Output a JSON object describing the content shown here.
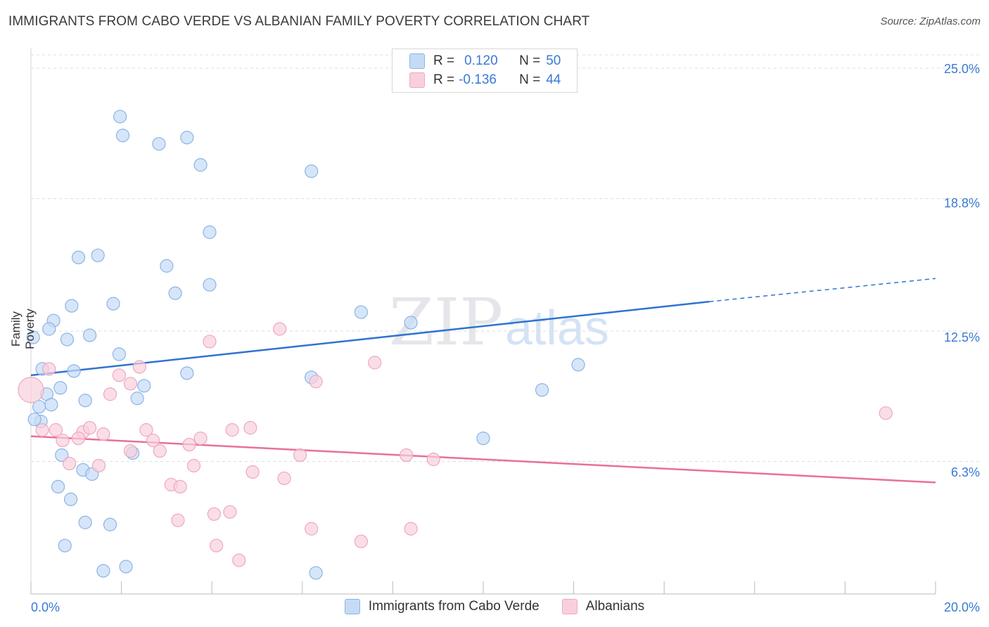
{
  "title": "IMMIGRANTS FROM CABO VERDE VS ALBANIAN FAMILY POVERTY CORRELATION CHART",
  "source": "Source: ZipAtlas.com",
  "watermark": {
    "zip": "ZIP",
    "atlas": "atlas"
  },
  "legend": {
    "r_label": "R =",
    "n_label": "N =",
    "series1": {
      "r": "0.120",
      "n": "50"
    },
    "series2": {
      "r": "-0.136",
      "n": "44"
    }
  },
  "chart_data": {
    "type": "scatter",
    "xlabel": "",
    "ylabel": "Family Poverty",
    "xlim": [
      0,
      20
    ],
    "ylim": [
      0,
      25
    ],
    "x_tick_labels": [
      "0.0%",
      "20.0%"
    ],
    "y_ticks": [
      6.3,
      12.5,
      18.8,
      25.0
    ],
    "y_tick_labels": [
      "6.3%",
      "12.5%",
      "18.8%",
      "25.0%"
    ],
    "grid": true,
    "series": [
      {
        "name": "Immigrants from Cabo Verde",
        "color": "#8ab4e8",
        "fill": "#c5dbf5",
        "trend_color": "#2f74d0",
        "trend": {
          "x0": 0.0,
          "y0": 10.4,
          "x1": 15.0,
          "y1": 13.9,
          "x_ext": 20.0,
          "y_ext": 15.0
        },
        "points": [
          [
            1.97,
            22.7
          ],
          [
            2.03,
            21.8
          ],
          [
            2.83,
            21.4
          ],
          [
            3.45,
            21.7
          ],
          [
            3.75,
            20.4
          ],
          [
            6.2,
            20.1
          ],
          [
            3.95,
            17.2
          ],
          [
            1.48,
            16.1
          ],
          [
            1.05,
            16.0
          ],
          [
            3.0,
            15.6
          ],
          [
            3.95,
            14.7
          ],
          [
            3.19,
            14.3
          ],
          [
            1.82,
            13.8
          ],
          [
            0.9,
            13.7
          ],
          [
            7.3,
            13.4
          ],
          [
            0.5,
            13.0
          ],
          [
            0.4,
            12.6
          ],
          [
            0.05,
            12.2
          ],
          [
            1.3,
            12.3
          ],
          [
            0.8,
            12.1
          ],
          [
            8.4,
            12.9
          ],
          [
            1.95,
            11.4
          ],
          [
            0.25,
            10.7
          ],
          [
            0.95,
            10.6
          ],
          [
            3.45,
            10.5
          ],
          [
            6.2,
            10.3
          ],
          [
            12.1,
            10.9
          ],
          [
            0.65,
            9.8
          ],
          [
            2.5,
            9.9
          ],
          [
            0.35,
            9.5
          ],
          [
            1.2,
            9.2
          ],
          [
            2.35,
            9.3
          ],
          [
            0.45,
            9.0
          ],
          [
            0.18,
            8.9
          ],
          [
            11.3,
            9.7
          ],
          [
            0.22,
            8.2
          ],
          [
            0.08,
            8.3
          ],
          [
            10.0,
            7.4
          ],
          [
            0.68,
            6.6
          ],
          [
            2.25,
            6.7
          ],
          [
            1.15,
            5.9
          ],
          [
            1.35,
            5.7
          ],
          [
            0.6,
            5.1
          ],
          [
            0.88,
            4.5
          ],
          [
            1.2,
            3.4
          ],
          [
            1.75,
            3.3
          ],
          [
            0.75,
            2.3
          ],
          [
            1.6,
            1.1
          ],
          [
            2.1,
            1.3
          ],
          [
            6.3,
            1.0
          ]
        ]
      },
      {
        "name": "Albanians",
        "color": "#f0a6bf",
        "fill": "#f8d0dd",
        "trend_color": "#e8709a",
        "trend": {
          "x0": 0.0,
          "y0": 7.5,
          "x1": 20.0,
          "y1": 5.3,
          "x_ext": 20.0,
          "y_ext": 5.3
        },
        "points": [
          [
            0.0,
            9.7
          ],
          [
            0.4,
            10.7
          ],
          [
            3.95,
            12.0
          ],
          [
            5.5,
            12.6
          ],
          [
            7.6,
            11.0
          ],
          [
            2.4,
            10.8
          ],
          [
            1.95,
            10.4
          ],
          [
            2.2,
            10.0
          ],
          [
            6.3,
            10.1
          ],
          [
            1.75,
            9.5
          ],
          [
            0.25,
            7.8
          ],
          [
            0.55,
            7.8
          ],
          [
            1.15,
            7.7
          ],
          [
            1.3,
            7.9
          ],
          [
            1.6,
            7.6
          ],
          [
            2.55,
            7.8
          ],
          [
            4.45,
            7.8
          ],
          [
            4.85,
            7.9
          ],
          [
            0.7,
            7.3
          ],
          [
            1.05,
            7.4
          ],
          [
            2.7,
            7.3
          ],
          [
            3.75,
            7.4
          ],
          [
            3.5,
            7.1
          ],
          [
            2.2,
            6.8
          ],
          [
            2.85,
            6.8
          ],
          [
            5.95,
            6.6
          ],
          [
            8.3,
            6.6
          ],
          [
            8.9,
            6.4
          ],
          [
            0.85,
            6.2
          ],
          [
            1.5,
            6.1
          ],
          [
            3.6,
            6.1
          ],
          [
            4.9,
            5.8
          ],
          [
            5.6,
            5.5
          ],
          [
            3.1,
            5.2
          ],
          [
            3.3,
            5.1
          ],
          [
            4.4,
            3.9
          ],
          [
            4.05,
            3.8
          ],
          [
            3.25,
            3.5
          ],
          [
            6.2,
            3.1
          ],
          [
            8.4,
            3.1
          ],
          [
            4.1,
            2.3
          ],
          [
            7.3,
            2.5
          ],
          [
            4.6,
            1.6
          ],
          [
            18.9,
            8.6
          ]
        ]
      }
    ]
  }
}
